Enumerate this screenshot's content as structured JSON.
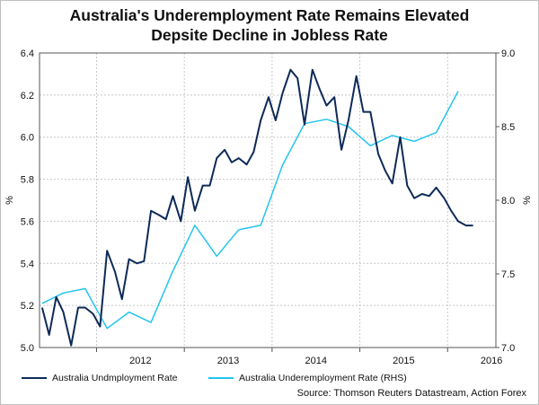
{
  "title_line1": "Australia's Underemployment Rate Remains Elevated",
  "title_line2": "Depsite Decline in Jobless Rate",
  "source": "Source: Thomson Reuters Datastream, Action Forex",
  "colors": {
    "unemployment": "#0d2a57",
    "underemployment": "#22c4ee",
    "grid": "#c8c8c8"
  },
  "chart_data": {
    "type": "line",
    "left_axis": {
      "label": "%",
      "ylim": [
        5.0,
        6.4
      ],
      "ticks": [
        "5.0",
        "5.2",
        "5.4",
        "5.6",
        "5.8",
        "6.0",
        "6.2",
        "6.4"
      ]
    },
    "right_axis": {
      "label": "%",
      "ylim": [
        7.0,
        9.0
      ],
      "ticks": [
        "7.0",
        "7.5",
        "8.0",
        "8.5",
        "9.0"
      ]
    },
    "xlim": [
      2011.35,
      2016.55
    ],
    "x_ticks": [
      "2012",
      "2013",
      "2014",
      "2015",
      "2016"
    ],
    "grid": true,
    "legend": "bottom",
    "series": [
      {
        "name": "Australia Undmployment Rate",
        "axis": "left",
        "x": [
          2011.38,
          2011.46,
          2011.54,
          2011.62,
          2011.71,
          2011.79,
          2011.87,
          2011.96,
          2012.04,
          2012.12,
          2012.21,
          2012.29,
          2012.37,
          2012.46,
          2012.54,
          2012.62,
          2012.71,
          2012.79,
          2012.87,
          2012.96,
          2013.04,
          2013.12,
          2013.21,
          2013.29,
          2013.37,
          2013.46,
          2013.54,
          2013.62,
          2013.71,
          2013.79,
          2013.87,
          2013.96,
          2014.04,
          2014.12,
          2014.21,
          2014.29,
          2014.37,
          2014.46,
          2014.54,
          2014.62,
          2014.71,
          2014.79,
          2014.87,
          2014.96,
          2015.04,
          2015.12,
          2015.21,
          2015.29,
          2015.37,
          2015.46,
          2015.54,
          2015.62,
          2015.71,
          2015.79,
          2015.87,
          2015.96,
          2016.04,
          2016.12,
          2016.21,
          2016.29
        ],
        "values": [
          5.19,
          5.06,
          5.24,
          5.17,
          5.01,
          5.19,
          5.19,
          5.16,
          5.1,
          5.46,
          5.36,
          5.23,
          5.42,
          5.4,
          5.41,
          5.65,
          5.63,
          5.61,
          5.72,
          5.6,
          5.81,
          5.65,
          5.77,
          5.77,
          5.9,
          5.94,
          5.88,
          5.9,
          5.87,
          5.93,
          6.08,
          6.19,
          6.08,
          6.21,
          6.32,
          6.28,
          6.06,
          6.32,
          6.23,
          6.15,
          6.19,
          5.94,
          6.08,
          6.29,
          6.12,
          6.12,
          5.92,
          5.84,
          5.78,
          6.0,
          5.77,
          5.71,
          5.73,
          5.72,
          5.76,
          5.71,
          5.65,
          5.6,
          5.58,
          5.58
        ]
      },
      {
        "name": "Australia Underemployment Rate (RHS)",
        "axis": "right",
        "x": [
          2011.38,
          2011.62,
          2011.87,
          2012.12,
          2012.37,
          2012.62,
          2012.87,
          2013.12,
          2013.37,
          2013.62,
          2013.87,
          2014.12,
          2014.37,
          2014.62,
          2014.87,
          2015.12,
          2015.37,
          2015.62,
          2015.87,
          2016.12
        ],
        "values": [
          7.3,
          7.37,
          7.4,
          7.13,
          7.24,
          7.17,
          7.52,
          7.83,
          7.62,
          7.8,
          7.83,
          8.24,
          8.52,
          8.55,
          8.5,
          8.37,
          8.44,
          8.4,
          8.46,
          8.74
        ]
      }
    ]
  }
}
